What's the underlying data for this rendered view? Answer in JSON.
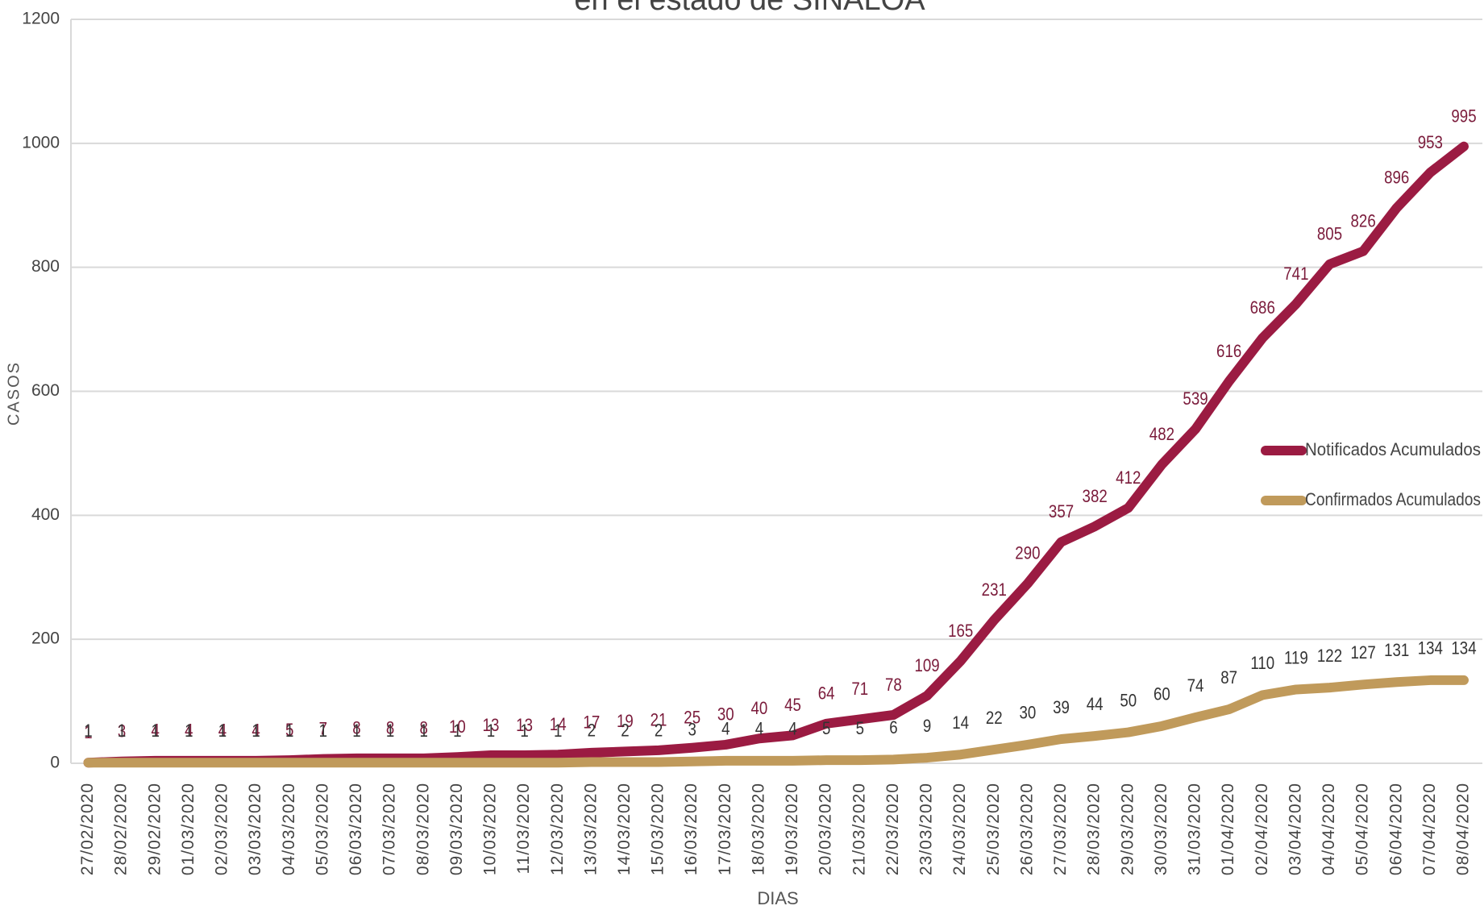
{
  "chart_data": {
    "type": "line",
    "title": "en el estado de SINALOA",
    "xlabel": "DIAS",
    "ylabel": "CASOS",
    "categories": [
      "27/02/2020",
      "28/02/2020",
      "29/02/2020",
      "01/03/2020",
      "02/03/2020",
      "03/03/2020",
      "04/03/2020",
      "05/03/2020",
      "06/03/2020",
      "07/03/2020",
      "08/03/2020",
      "09/03/2020",
      "10/03/2020",
      "11/03/2020",
      "12/03/2020",
      "13/03/2020",
      "14/03/2020",
      "15/03/2020",
      "16/03/2020",
      "17/03/2020",
      "18/03/2020",
      "19/03/2020",
      "20/03/2020",
      "21/03/2020",
      "22/03/2020",
      "23/03/2020",
      "24/03/2020",
      "25/03/2020",
      "26/03/2020",
      "27/03/2020",
      "28/03/2020",
      "29/03/2020",
      "30/03/2020",
      "31/03/2020",
      "01/04/2020",
      "02/04/2020",
      "03/04/2020",
      "04/04/2020",
      "05/04/2020",
      "06/04/2020",
      "07/04/2020",
      "08/04/2020"
    ],
    "series": [
      {
        "name": "Notificados Acumulados",
        "color": "#9b1b42",
        "label_color": "#7a1a3a",
        "values": [
          1,
          3,
          4,
          4,
          4,
          4,
          5,
          7,
          8,
          8,
          8,
          10,
          13,
          13,
          14,
          17,
          19,
          21,
          25,
          30,
          40,
          45,
          64,
          71,
          78,
          109,
          165,
          231,
          290,
          357,
          382,
          412,
          482,
          539,
          616,
          686,
          741,
          805,
          826,
          896,
          953,
          995
        ]
      },
      {
        "name": "Confirmados Acumulados",
        "color": "#c09a5b",
        "label_color": "#333333",
        "values": [
          1,
          1,
          1,
          1,
          1,
          1,
          1,
          1,
          1,
          1,
          1,
          1,
          1,
          1,
          1,
          2,
          2,
          2,
          3,
          4,
          4,
          4,
          5,
          5,
          6,
          9,
          14,
          22,
          30,
          39,
          44,
          50,
          60,
          74,
          87,
          110,
          119,
          122,
          127,
          131,
          134,
          134
        ]
      }
    ],
    "ylim": [
      0,
      1200
    ],
    "yticks": [
      0,
      200,
      400,
      600,
      800,
      1000,
      1200
    ],
    "grid": true,
    "legend": "right"
  }
}
